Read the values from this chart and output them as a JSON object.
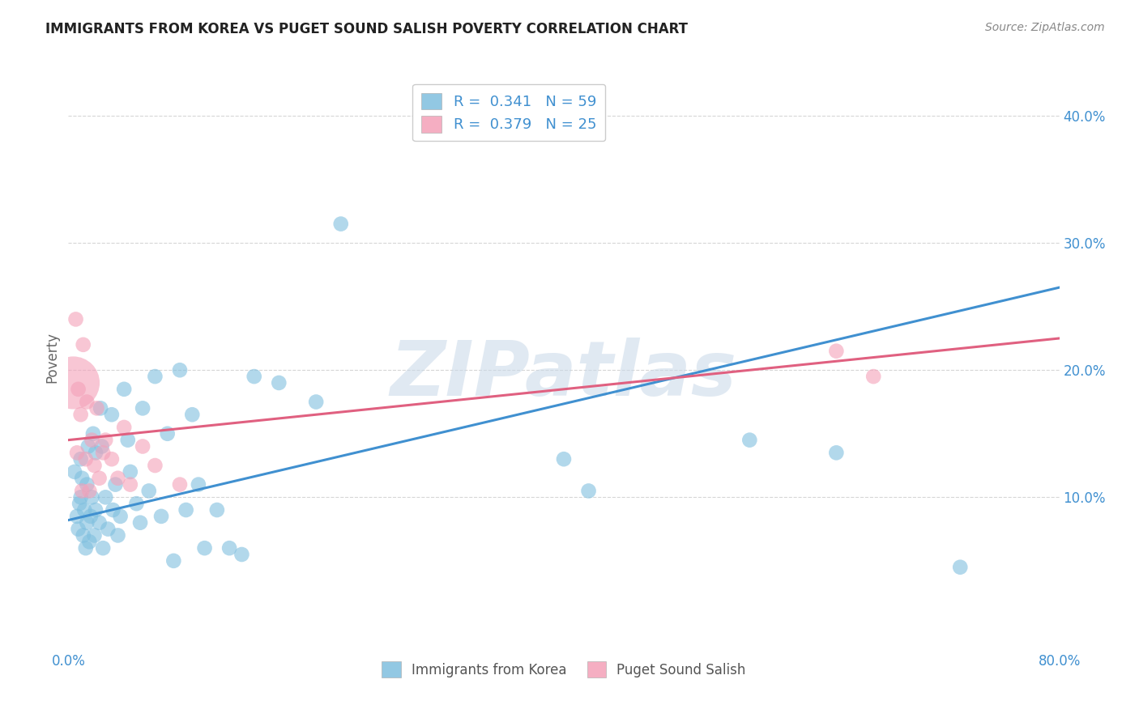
{
  "title": "IMMIGRANTS FROM KOREA VS PUGET SOUND SALISH POVERTY CORRELATION CHART",
  "source": "Source: ZipAtlas.com",
  "ylabel": "Poverty",
  "xlim": [
    0.0,
    0.8
  ],
  "ylim": [
    -0.02,
    0.44
  ],
  "blue_color": "#7fbfdf",
  "pink_color": "#f4a0b8",
  "blue_line_color": "#4090d0",
  "pink_line_color": "#e06080",
  "r_blue": 0.341,
  "n_blue": 59,
  "r_pink": 0.379,
  "n_pink": 25,
  "blue_scatter_x": [
    0.005,
    0.007,
    0.008,
    0.009,
    0.01,
    0.01,
    0.011,
    0.012,
    0.013,
    0.014,
    0.015,
    0.015,
    0.016,
    0.017,
    0.018,
    0.019,
    0.02,
    0.021,
    0.022,
    0.022,
    0.025,
    0.026,
    0.027,
    0.028,
    0.03,
    0.032,
    0.035,
    0.036,
    0.038,
    0.04,
    0.042,
    0.045,
    0.048,
    0.05,
    0.055,
    0.058,
    0.06,
    0.065,
    0.07,
    0.075,
    0.08,
    0.085,
    0.09,
    0.095,
    0.1,
    0.105,
    0.11,
    0.12,
    0.13,
    0.14,
    0.15,
    0.17,
    0.2,
    0.22,
    0.4,
    0.42,
    0.55,
    0.62,
    0.72
  ],
  "blue_scatter_y": [
    0.12,
    0.085,
    0.075,
    0.095,
    0.13,
    0.1,
    0.115,
    0.07,
    0.09,
    0.06,
    0.11,
    0.08,
    0.14,
    0.065,
    0.085,
    0.1,
    0.15,
    0.07,
    0.09,
    0.135,
    0.08,
    0.17,
    0.14,
    0.06,
    0.1,
    0.075,
    0.165,
    0.09,
    0.11,
    0.07,
    0.085,
    0.185,
    0.145,
    0.12,
    0.095,
    0.08,
    0.17,
    0.105,
    0.195,
    0.085,
    0.15,
    0.05,
    0.2,
    0.09,
    0.165,
    0.11,
    0.06,
    0.09,
    0.06,
    0.055,
    0.195,
    0.19,
    0.175,
    0.315,
    0.13,
    0.105,
    0.145,
    0.135,
    0.045
  ],
  "pink_scatter_x": [
    0.004,
    0.006,
    0.007,
    0.008,
    0.01,
    0.011,
    0.012,
    0.014,
    0.015,
    0.017,
    0.019,
    0.021,
    0.023,
    0.025,
    0.028,
    0.03,
    0.035,
    0.04,
    0.045,
    0.05,
    0.06,
    0.07,
    0.09,
    0.62,
    0.65
  ],
  "pink_scatter_y": [
    0.19,
    0.24,
    0.135,
    0.185,
    0.165,
    0.105,
    0.22,
    0.13,
    0.175,
    0.105,
    0.145,
    0.125,
    0.17,
    0.115,
    0.135,
    0.145,
    0.13,
    0.115,
    0.155,
    0.11,
    0.14,
    0.125,
    0.11,
    0.215,
    0.195
  ],
  "pink_large_idx": 0,
  "blue_line_x0": 0.0,
  "blue_line_y0": 0.082,
  "blue_line_x1": 0.8,
  "blue_line_y1": 0.265,
  "pink_line_x0": 0.0,
  "pink_line_y0": 0.145,
  "pink_line_x1": 0.8,
  "pink_line_y1": 0.225,
  "watermark_text": "ZIPatlas",
  "background_color": "#ffffff",
  "grid_color": "#cccccc"
}
